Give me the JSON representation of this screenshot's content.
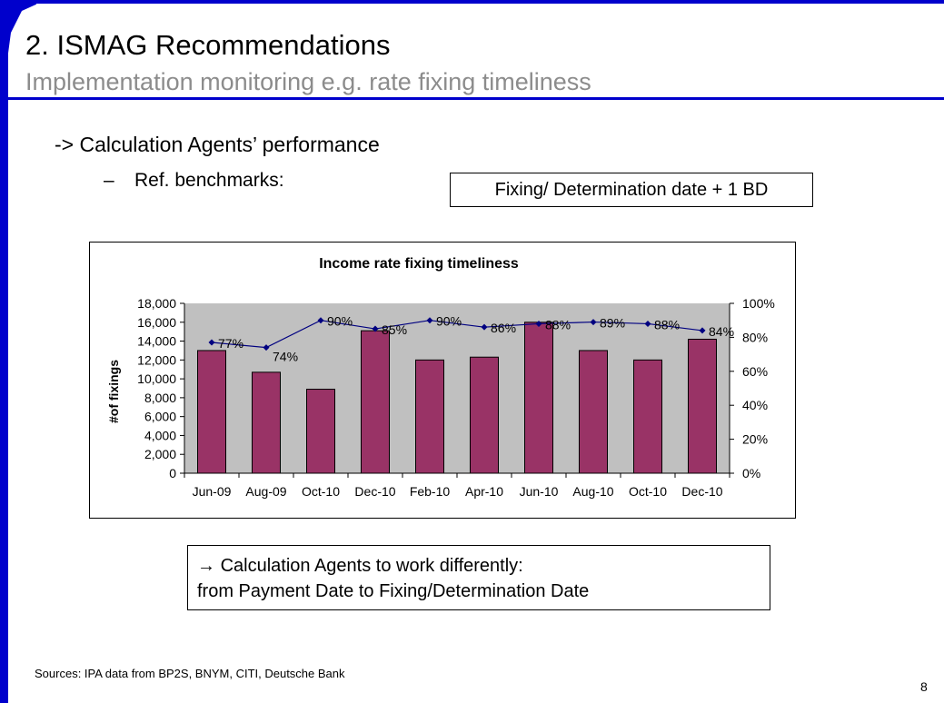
{
  "slide": {
    "title": "2. ISMAG Recommendations",
    "subtitle": "Implementation monitoring e.g. rate fixing timeliness",
    "bullet_1": "-> Calculation Agents’ performance",
    "bullet_2_dash": "–",
    "bullet_2": "Ref. benchmarks:",
    "benchmark_box": "Fixing/ Determination date + 1 BD",
    "note_line_1_arrow": "→",
    "note_line_1": "Calculation Agents to work differently:",
    "note_line_2": "from Payment Date to Fixing/Determination Date",
    "sources": "Sources: IPA data from BP2S, BNYM, CITI, Deutsche Bank",
    "page_number": "8",
    "accent_color": "#0000cc",
    "subtitle_color": "#8c8c8c"
  },
  "chart_data": {
    "type": "bar",
    "title": "Income rate fixing timeliness",
    "ylabel": "#of fixings",
    "categories": [
      "Jun-09",
      "Aug-09",
      "Oct-10",
      "Dec-10",
      "Feb-10",
      "Apr-10",
      "Jun-10",
      "Aug-10",
      "Oct-10",
      "Dec-10"
    ],
    "series": [
      {
        "type": "bar",
        "axis": "left",
        "values": [
          13000,
          10700,
          8900,
          15100,
          12000,
          12300,
          16000,
          13000,
          12000,
          14200
        ],
        "color": "#993366"
      },
      {
        "type": "line",
        "axis": "right",
        "values": [
          77,
          74,
          90,
          85,
          90,
          86,
          88,
          89,
          88,
          84
        ],
        "labels": [
          "77%",
          "74%",
          "90%",
          "85%",
          "90%",
          "86%",
          "88%",
          "89%",
          "88%",
          "84%"
        ],
        "color": "#000080"
      }
    ],
    "ylim": [
      0,
      18000
    ],
    "yticks": [
      0,
      2000,
      4000,
      6000,
      8000,
      10000,
      12000,
      14000,
      16000,
      18000
    ],
    "ytick_labels": [
      "0",
      "2,000",
      "4,000",
      "6,000",
      "8,000",
      "10,000",
      "12,000",
      "14,000",
      "16,000",
      "18,000"
    ],
    "y2lim": [
      0,
      100
    ],
    "y2ticks": [
      0,
      20,
      40,
      60,
      80,
      100
    ],
    "y2tick_labels": [
      "0%",
      "20%",
      "40%",
      "60%",
      "80%",
      "100%"
    ],
    "plot_background": "#c0c0c0",
    "grid": false,
    "legend": "none"
  }
}
